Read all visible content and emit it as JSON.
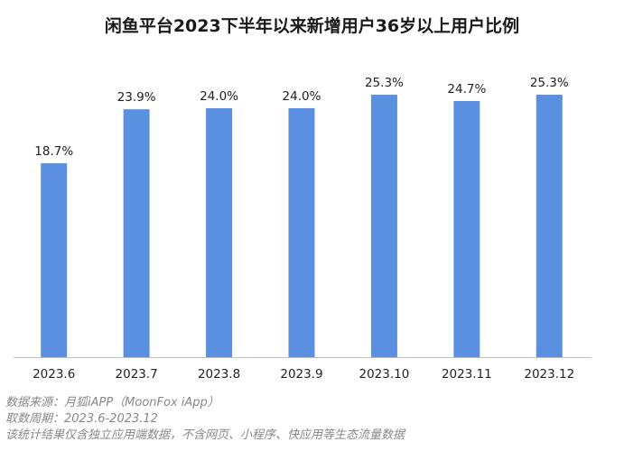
{
  "chart_data": {
    "type": "bar",
    "title": "闲鱼平台2023下半年以来新增用户36岁以上用户比例",
    "categories": [
      "2023.6",
      "2023.7",
      "2023.8",
      "2023.9",
      "2023.10",
      "2023.11",
      "2023.12"
    ],
    "values": [
      18.7,
      23.9,
      24.0,
      24.0,
      25.3,
      24.7,
      25.3
    ],
    "data_labels": [
      "18.7%",
      "23.9%",
      "24.0%",
      "24.0%",
      "25.3%",
      "24.7%",
      "25.3%"
    ],
    "unit": "%",
    "ylim": [
      0,
      30
    ],
    "grid": false,
    "bar_color": "#5b8fe0",
    "xlabel": "",
    "ylabel": ""
  },
  "footnotes": [
    "数据来源：月狐iAPP（MoonFox iApp）",
    "取数周期：2023.6-2023.12",
    "该统计结果仅含独立应用端数据，不含网页、小程序、快应用等生态流量数据"
  ]
}
